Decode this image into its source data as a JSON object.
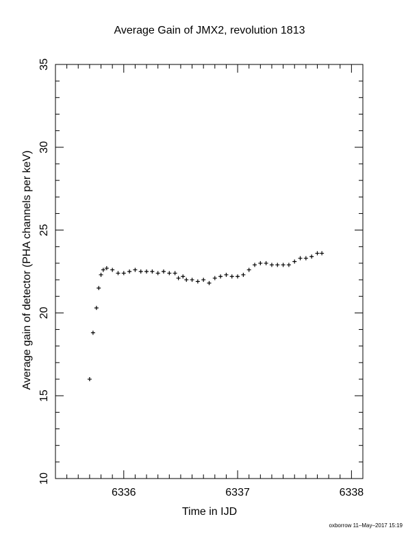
{
  "chart_data": {
    "type": "scatter",
    "title": "Average Gain of JMX2, revolution 1813",
    "xlabel": "Time in IJD",
    "ylabel": "Average gain of detector (PHA channels per keV)",
    "xlim": [
      6335.4,
      6338.1
    ],
    "ylim": [
      10,
      35
    ],
    "x_ticks": [
      6336,
      6337,
      6338
    ],
    "y_ticks": [
      10,
      15,
      20,
      25,
      30,
      35
    ],
    "marker": "plus",
    "grid": false,
    "series": [
      {
        "x": [
          6335.7,
          6335.73,
          6335.76,
          6335.78,
          6335.8,
          6335.82,
          6335.85,
          6335.9,
          6335.95,
          6336.0,
          6336.05,
          6336.1,
          6336.15,
          6336.2,
          6336.25,
          6336.3,
          6336.35,
          6336.4,
          6336.45,
          6336.48,
          6336.52,
          6336.55,
          6336.6,
          6336.65,
          6336.7,
          6336.75,
          6336.8,
          6336.85,
          6336.9,
          6336.95,
          6337.0,
          6337.05,
          6337.1,
          6337.15,
          6337.2,
          6337.25,
          6337.3,
          6337.35,
          6337.4,
          6337.45,
          6337.5,
          6337.55,
          6337.6,
          6337.65,
          6337.7,
          6337.74
        ],
        "y": [
          16.0,
          18.8,
          20.3,
          21.5,
          22.3,
          22.6,
          22.7,
          22.6,
          22.4,
          22.4,
          22.5,
          22.6,
          22.5,
          22.5,
          22.5,
          22.4,
          22.5,
          22.4,
          22.4,
          22.1,
          22.2,
          22.0,
          22.0,
          21.9,
          22.0,
          21.8,
          22.1,
          22.2,
          22.3,
          22.2,
          22.2,
          22.3,
          22.6,
          22.9,
          23.0,
          23.0,
          22.9,
          22.9,
          22.9,
          22.9,
          23.1,
          23.3,
          23.3,
          23.4,
          23.6,
          23.6
        ]
      }
    ]
  },
  "footer": {
    "stamp": "oxborrow 11–May–2017 15:19"
  }
}
